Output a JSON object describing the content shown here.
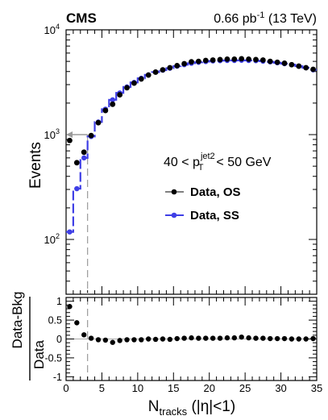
{
  "header": {
    "experiment": "CMS",
    "lumi_value": "0.66 pb",
    "lumi_exp": "-1",
    "lumi_energy": "(13 TeV)"
  },
  "annotation": {
    "pt_lo": "40 < p",
    "pt_sup": "jet2",
    "pt_sub": "T",
    "pt_hi": "< 50 GeV"
  },
  "colors": {
    "os": "#000000",
    "ss": "#3f3fe6",
    "cut_line": "#9a9a9a",
    "ratio_ref": "#aaaaaa"
  },
  "chart_data": [
    {
      "type": "line",
      "panel": "main",
      "title": "",
      "xlabel": "N",
      "xlabel_sub": "tracks",
      "xlabel_suffix": " (|η|<1)",
      "ylabel": "Events",
      "xlim": [
        0,
        35
      ],
      "ylim": [
        30,
        10000
      ],
      "yscale": "log",
      "y_tick_labels": [
        {
          "value": 100,
          "base": "10",
          "exp": "2"
        },
        {
          "value": 1000,
          "base": "10",
          "exp": "3"
        },
        {
          "value": 10000,
          "base": "10",
          "exp": "4"
        }
      ],
      "x_ticks": [
        0,
        5,
        10,
        15,
        20,
        25,
        30,
        35
      ],
      "legend_position": "center-right",
      "series": [
        {
          "name": "Data, OS",
          "style": "markers",
          "x": [
            0.5,
            1.5,
            2.5,
            3.5,
            4.5,
            5.5,
            6.5,
            7.5,
            8.5,
            9.5,
            10.5,
            11.5,
            12.5,
            13.5,
            14.5,
            15.5,
            16.5,
            17.5,
            18.5,
            19.5,
            20.5,
            21.5,
            22.5,
            23.5,
            24.5,
            25.5,
            26.5,
            27.5,
            28.5,
            29.5,
            30.5,
            31.5,
            32.5,
            33.5,
            34.5
          ],
          "y": [
            880,
            540,
            680,
            980,
            1300,
            1700,
            1950,
            2400,
            2800,
            3100,
            3400,
            3700,
            3950,
            4150,
            4350,
            4550,
            4750,
            4950,
            5000,
            5100,
            5150,
            5200,
            5250,
            5250,
            5300,
            5250,
            5200,
            5150,
            5000,
            4900,
            4800,
            4650,
            4500,
            4350,
            4200
          ]
        },
        {
          "name": "Data, SS",
          "style": "step-line-with-markers",
          "x": [
            0.5,
            1.5,
            2.5,
            3.5,
            4.5,
            5.5,
            6.5,
            7.5,
            8.5,
            9.5,
            10.5,
            11.5,
            12.5,
            13.5,
            14.5,
            15.5,
            16.5,
            17.5,
            18.5,
            19.5,
            20.5,
            21.5,
            22.5,
            23.5,
            24.5,
            25.5,
            26.5,
            27.5,
            28.5,
            29.5,
            30.5,
            31.5,
            32.5,
            33.5,
            34.5
          ],
          "y": [
            118,
            305,
            600,
            960,
            1320,
            1750,
            2150,
            2500,
            2850,
            3150,
            3450,
            3720,
            3950,
            4120,
            4300,
            4500,
            4650,
            4800,
            4900,
            4980,
            5050,
            5080,
            5100,
            5100,
            5120,
            5100,
            5080,
            5020,
            4950,
            4850,
            4750,
            4650,
            4500,
            4350,
            4150
          ]
        }
      ],
      "annotations": [
        {
          "type": "vertical-dashed-line",
          "x": 3
        },
        {
          "type": "arrow-left",
          "x_from": 3,
          "x_to": 0,
          "y": 1000
        }
      ]
    },
    {
      "type": "scatter",
      "panel": "ratio",
      "ylabel_num": "Data-Bkg",
      "ylabel_den": "Data",
      "xlim": [
        0,
        35
      ],
      "ylim": [
        -1.1,
        1.1
      ],
      "y_ticks": [
        {
          "value": 1,
          "label": "1"
        },
        {
          "value": 0.5,
          "label": "0.5"
        },
        {
          "value": 0,
          "label": "0"
        },
        {
          "value": -0.5,
          "label": "-0.5"
        },
        {
          "value": -1,
          "label": "-1"
        }
      ],
      "x_ticks": [
        {
          "value": 0,
          "label": "0"
        },
        {
          "value": 5,
          "label": "5"
        },
        {
          "value": 10,
          "label": "10"
        },
        {
          "value": 15,
          "label": "15"
        },
        {
          "value": 20,
          "label": "20"
        },
        {
          "value": 25,
          "label": "25"
        },
        {
          "value": 30,
          "label": "30"
        },
        {
          "value": 35,
          "label": "35"
        }
      ],
      "x": [
        0.5,
        1.5,
        2.5,
        3.5,
        4.5,
        5.5,
        6.5,
        7.5,
        8.5,
        9.5,
        10.5,
        11.5,
        12.5,
        13.5,
        14.5,
        15.5,
        16.5,
        17.5,
        18.5,
        19.5,
        20.5,
        21.5,
        22.5,
        23.5,
        24.5,
        25.5,
        26.5,
        27.5,
        28.5,
        29.5,
        30.5,
        31.5,
        32.5,
        33.5,
        34.5
      ],
      "y": [
        0.86,
        0.43,
        0.11,
        0.02,
        -0.02,
        -0.03,
        -0.09,
        -0.04,
        -0.02,
        -0.02,
        -0.02,
        0,
        -0.01,
        0,
        -0.01,
        0.01,
        0.02,
        0.03,
        0.02,
        0.02,
        0.02,
        0.02,
        0.03,
        0.03,
        0.05,
        0.03,
        0.02,
        0.02,
        0.01,
        0.01,
        0.01,
        0,
        0,
        0,
        0.01
      ]
    }
  ]
}
